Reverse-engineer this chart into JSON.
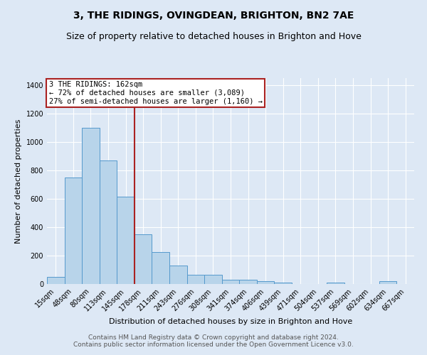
{
  "title": "3, THE RIDINGS, OVINGDEAN, BRIGHTON, BN2 7AE",
  "subtitle": "Size of property relative to detached houses in Brighton and Hove",
  "xlabel": "Distribution of detached houses by size in Brighton and Hove",
  "ylabel": "Number of detached properties",
  "categories": [
    "15sqm",
    "48sqm",
    "80sqm",
    "113sqm",
    "145sqm",
    "178sqm",
    "211sqm",
    "243sqm",
    "276sqm",
    "308sqm",
    "341sqm",
    "374sqm",
    "406sqm",
    "439sqm",
    "471sqm",
    "504sqm",
    "537sqm",
    "569sqm",
    "602sqm",
    "634sqm",
    "667sqm"
  ],
  "values": [
    50,
    750,
    1100,
    870,
    615,
    350,
    225,
    130,
    63,
    65,
    28,
    28,
    18,
    12,
    0,
    0,
    12,
    0,
    0,
    18,
    0
  ],
  "bar_color": "#b8d4ea",
  "bar_edge_color": "#5599cc",
  "background_color": "#dde8f5",
  "property_label": "3 THE RIDINGS: 162sqm",
  "annotation_line1": "← 72% of detached houses are smaller (3,089)",
  "annotation_line2": "27% of semi-detached houses are larger (1,160) →",
  "vline_color": "#aa2222",
  "box_color": "#aa2222",
  "ylim": [
    0,
    1450
  ],
  "yticks": [
    0,
    200,
    400,
    600,
    800,
    1000,
    1200,
    1400
  ],
  "footer_line1": "Contains HM Land Registry data © Crown copyright and database right 2024.",
  "footer_line2": "Contains public sector information licensed under the Open Government Licence v3.0.",
  "title_fontsize": 10,
  "subtitle_fontsize": 9,
  "tick_fontsize": 7,
  "ylabel_fontsize": 8,
  "xlabel_fontsize": 8,
  "footer_fontsize": 6.5,
  "annot_fontsize": 7.5
}
